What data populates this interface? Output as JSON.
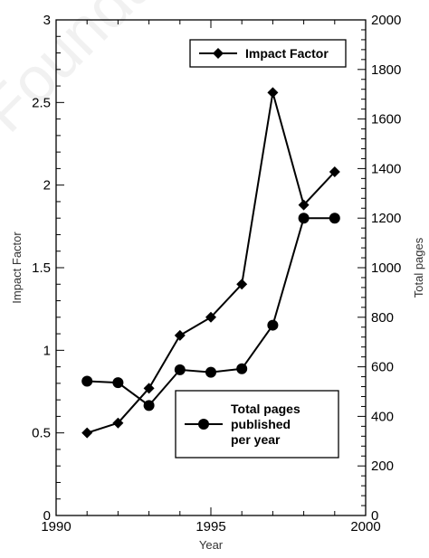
{
  "watermark": "Foundation",
  "chart_data": {
    "type": "line",
    "xlabel": "Year",
    "ylabel_left": "Impact Factor",
    "ylabel_right": "Total pages",
    "xlim": [
      1990,
      2000
    ],
    "ylim_left": [
      0,
      3
    ],
    "ylim_right": [
      0,
      2000
    ],
    "x_ticks": [
      "1990",
      "1995",
      "2000"
    ],
    "y_left_ticks": [
      "0",
      "0.5",
      "1",
      "1.5",
      "2",
      "2.5",
      "3"
    ],
    "y_right_ticks": [
      "0",
      "200",
      "400",
      "600",
      "800",
      "1000",
      "1200",
      "1400",
      "1600",
      "1800",
      "2000"
    ],
    "grid": false,
    "series": [
      {
        "name": "Impact Factor",
        "axis": "left",
        "marker": "diamond",
        "x": [
          1991,
          1992,
          1993,
          1994,
          1995,
          1996,
          1997,
          1998,
          1999
        ],
        "y": [
          0.5,
          0.56,
          0.77,
          1.09,
          1.2,
          1.4,
          2.56,
          1.88,
          2.08
        ]
      },
      {
        "name": "Total pages published per year",
        "axis": "right",
        "marker": "circle",
        "x": [
          1991,
          1992,
          1993,
          1994,
          1995,
          1996,
          1997,
          1998,
          1999
        ],
        "y": [
          542,
          536,
          444,
          588,
          578,
          592,
          768,
          1200,
          1200
        ]
      }
    ],
    "legends": [
      {
        "series": 0,
        "lines": [
          "Impact Factor"
        ],
        "placement": "top-right"
      },
      {
        "series": 1,
        "lines": [
          "Total pages",
          "published",
          "per year"
        ],
        "placement": "bottom-right"
      }
    ],
    "colors": {
      "line": "#000000",
      "marker": "#000000"
    }
  }
}
